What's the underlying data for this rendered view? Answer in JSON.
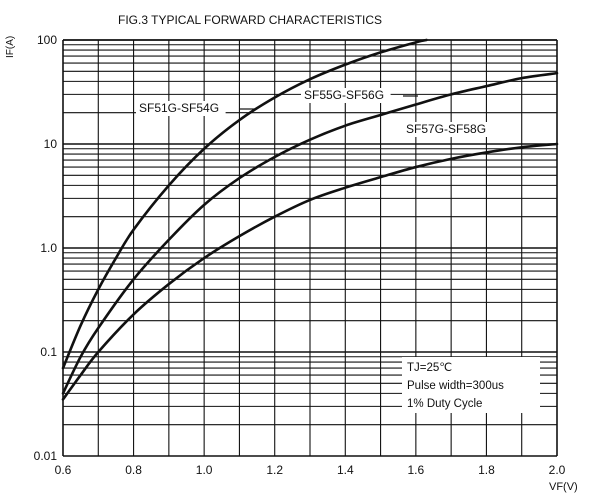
{
  "chart_data": {
    "type": "line",
    "title": "FIG.3 TYPICAL FORWARD CHARACTERISTICS",
    "xlabel": "VF(V)",
    "ylabel": "IF(A)",
    "y_scale": "log",
    "xlim": [
      0.6,
      2.0
    ],
    "ylim": [
      0.01,
      100
    ],
    "grid": true,
    "x_ticks": [
      "0.6",
      "0.8",
      "1.0",
      "1.2",
      "1.4",
      "1.6",
      "1.8",
      "2.0"
    ],
    "y_ticks": [
      "0.01",
      "0.1",
      "1.0",
      "10",
      "100"
    ],
    "series": [
      {
        "name": "SF51G-SF54G",
        "x": [
          0.6,
          0.65,
          0.7,
          0.75,
          0.8,
          0.9,
          1.0,
          1.1,
          1.2,
          1.3,
          1.4,
          1.5,
          1.6,
          1.63
        ],
        "y": [
          0.07,
          0.18,
          0.4,
          0.8,
          1.5,
          4.0,
          9.0,
          17,
          28,
          42,
          58,
          76,
          95,
          100
        ]
      },
      {
        "name": "SF55G-SF56G",
        "x": [
          0.6,
          0.65,
          0.7,
          0.8,
          0.9,
          1.0,
          1.1,
          1.2,
          1.3,
          1.4,
          1.5,
          1.6,
          1.7,
          1.8,
          1.9,
          2.0
        ],
        "y": [
          0.04,
          0.09,
          0.17,
          0.5,
          1.2,
          2.6,
          4.7,
          7.5,
          11,
          15,
          19,
          24,
          30,
          36,
          43,
          48
        ]
      },
      {
        "name": "SF57G-SF58G",
        "x": [
          0.6,
          0.65,
          0.7,
          0.8,
          0.9,
          1.0,
          1.1,
          1.2,
          1.3,
          1.4,
          1.5,
          1.6,
          1.7,
          1.8,
          1.9,
          2.0
        ],
        "y": [
          0.035,
          0.06,
          0.1,
          0.23,
          0.45,
          0.8,
          1.3,
          2.0,
          2.9,
          3.8,
          4.8,
          6.0,
          7.2,
          8.3,
          9.3,
          10
        ]
      }
    ],
    "annotation_lines": [
      "TJ=25℃",
      "Pulse width=300us",
      "1% Duty Cycle"
    ]
  }
}
